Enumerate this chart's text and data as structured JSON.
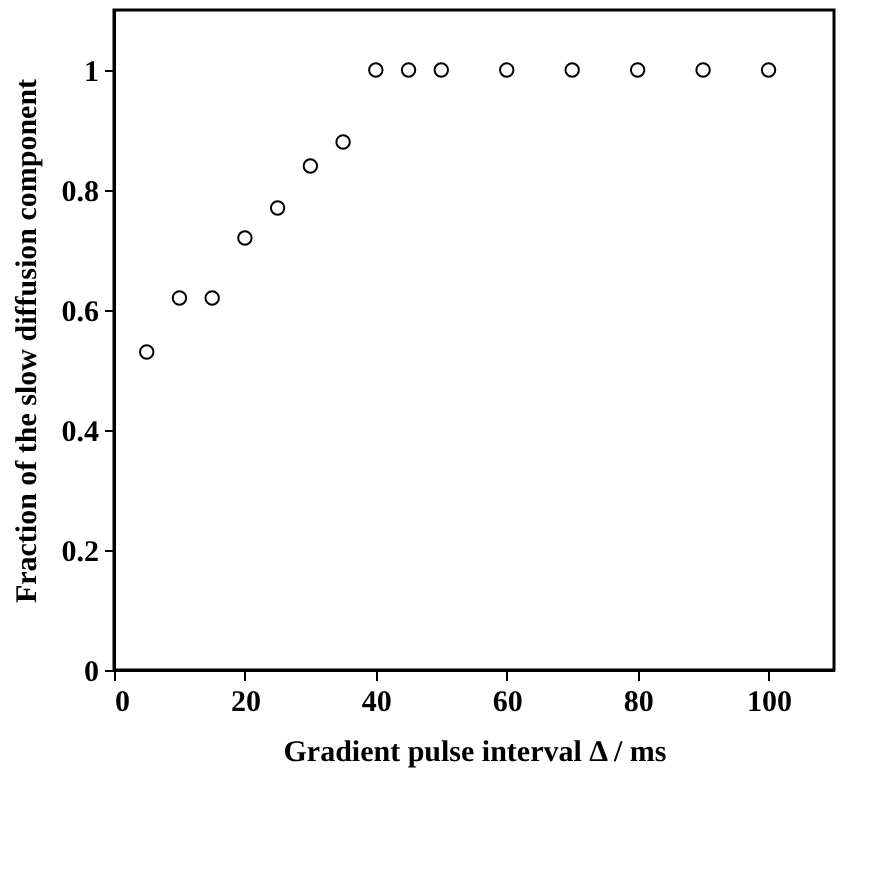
{
  "chart_data": {
    "type": "scatter",
    "xlabel": "Gradient pulse interval Δ / ms",
    "ylabel": "Fraction of the slow diffusion component",
    "x": [
      5,
      10,
      15,
      20,
      25,
      30,
      35,
      40,
      45,
      50,
      60,
      70,
      80,
      90,
      100
    ],
    "series": [
      {
        "color": "#000000",
        "values": [
          0.53,
          0.62,
          0.62,
          0.72,
          0.77,
          0.84,
          0.88,
          1.0,
          1.0,
          1.0,
          1.0,
          1.0,
          1.0,
          1.0,
          1.0
        ]
      }
    ],
    "marker": "circle",
    "xlim": [
      0,
      110
    ],
    "xticks": [
      0,
      20,
      40,
      60,
      80,
      100
    ],
    "ylim": [
      0,
      1.1
    ],
    "yticks": [
      0,
      0.2,
      0.4,
      0.6,
      0.8,
      1
    ],
    "grid": false
  }
}
